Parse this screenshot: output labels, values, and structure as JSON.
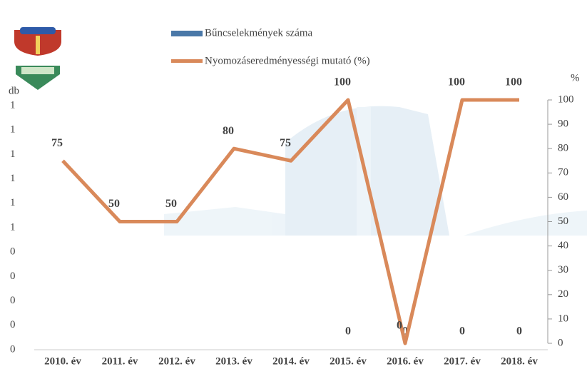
{
  "chart_data": {
    "type": "bar-line",
    "categories": [
      "2010. év",
      "2011. év",
      "2012. év",
      "2013. év",
      "2014. év",
      "2015. év",
      "2016. év",
      "2017. év",
      "2018. év"
    ],
    "series": [
      {
        "name": "Bűncselekmények száma",
        "type": "bar",
        "color": "#4a78a8",
        "values": [
          null,
          null,
          null,
          null,
          null,
          0,
          0,
          0,
          0
        ]
      },
      {
        "name": "Nyomozáseredményességi mutató (%)",
        "type": "line",
        "axis": "y2",
        "color": "#d9895a",
        "values": [
          75,
          50,
          50,
          80,
          75,
          100,
          0,
          100,
          100
        ]
      }
    ],
    "y_label": "db",
    "y2_label": "%",
    "ylim": [
      0,
      1
    ],
    "yticks": [
      0,
      {
        "value": 0.1,
        "label": "0"
      },
      {
        "value": 0.2,
        "label": "0"
      },
      {
        "value": 0.3,
        "label": "0"
      },
      {
        "value": 0.4,
        "label": "0"
      },
      {
        "value": 0.5,
        "label": "1"
      },
      {
        "value": 0.6,
        "label": "1"
      },
      {
        "value": 0.7,
        "label": "1"
      },
      {
        "value": 0.8,
        "label": "1"
      },
      {
        "value": 0.9,
        "label": "1"
      },
      1
    ],
    "y2lim": [
      0,
      100
    ],
    "y2ticks": [
      0,
      10,
      20,
      30,
      40,
      50,
      60,
      70,
      80,
      90,
      100
    ]
  }
}
